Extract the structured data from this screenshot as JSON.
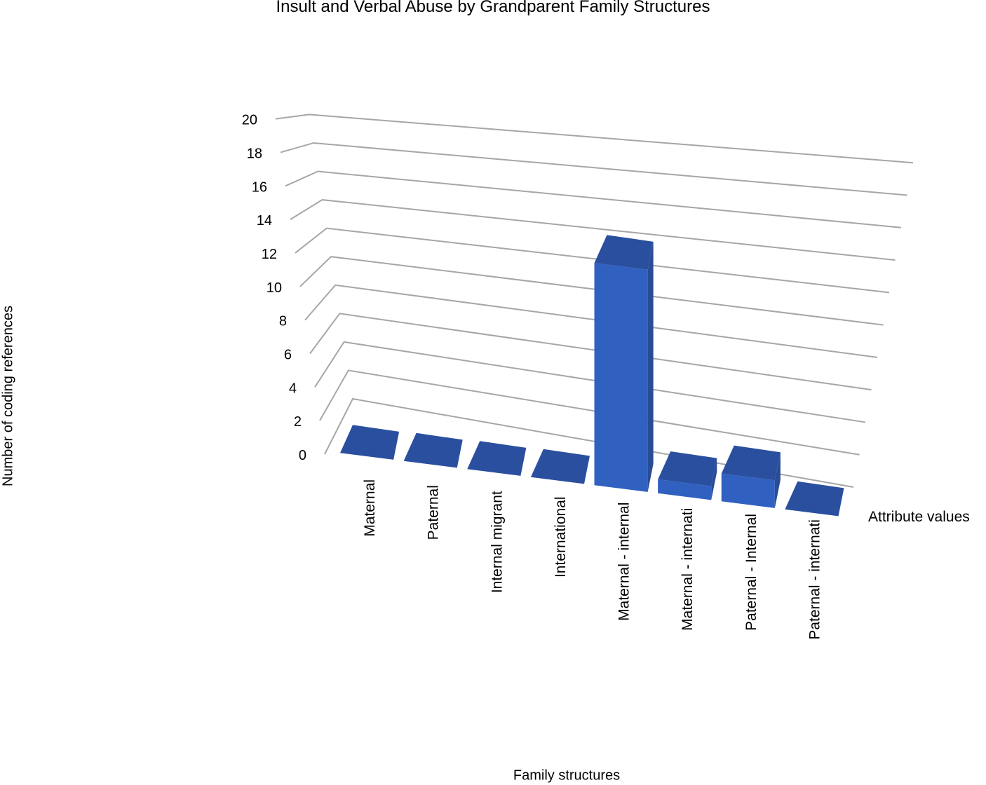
{
  "chart_data": {
    "type": "bar",
    "title": "Insult and Verbal Abuse by Grandparent Family Structures",
    "xlabel": "Family structures",
    "ylabel": "Number of coding references",
    "depth_axis_label": "Attribute values",
    "ylim": [
      0,
      20
    ],
    "yticks": [
      "0",
      "2",
      "4",
      "6",
      "8",
      "10",
      "12",
      "14",
      "16",
      "18",
      "20"
    ],
    "categories": [
      "Maternal",
      "Paternal",
      "Internal migrant",
      "International",
      "Maternal - internal",
      "Maternal - internati",
      "Paternal - Internal",
      "Paternal - internati"
    ],
    "values": [
      0,
      0,
      0,
      0,
      16,
      1,
      2,
      0
    ],
    "grid": true,
    "colors": {
      "bar_front": "#3060c0",
      "bar_top": "#2a4f9f",
      "bar_side": "#2a4c96",
      "grid": "#a6a6a6"
    }
  }
}
